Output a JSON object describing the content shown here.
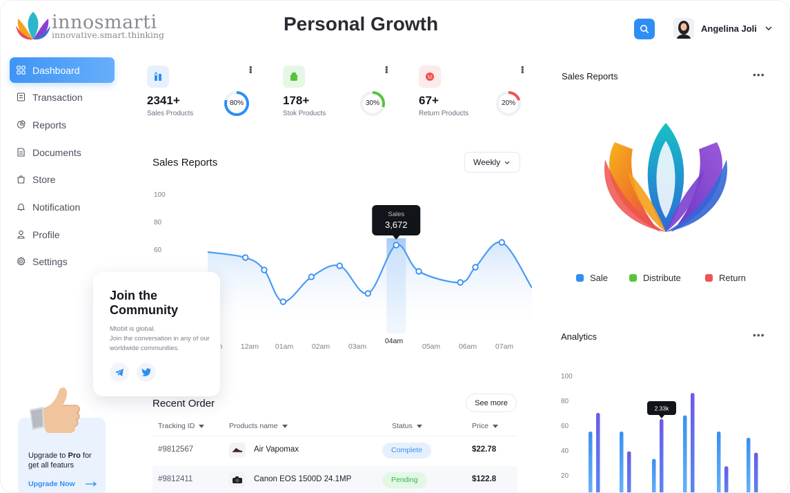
{
  "brand": {
    "name": "innosmarti",
    "tagline": "innovative.smart.thinking",
    "colors": {
      "accent": "#2f8ef3",
      "green": "#56c43e",
      "red": "#ef5350"
    }
  },
  "header": {
    "title": "Personal Growth",
    "search_icon": "search-icon",
    "user": {
      "name": "Angelina Joli"
    }
  },
  "sidebar": {
    "items": [
      {
        "label": "Dashboard",
        "icon": "grid-icon",
        "active": true
      },
      {
        "label": "Transaction",
        "icon": "receipt-icon"
      },
      {
        "label": "Reports",
        "icon": "pie-chart-icon"
      },
      {
        "label": "Documents",
        "icon": "document-icon"
      },
      {
        "label": "Store",
        "icon": "store-icon"
      },
      {
        "label": "Notification",
        "icon": "bell-icon"
      },
      {
        "label": "Profile",
        "icon": "user-icon"
      },
      {
        "label": "Settings",
        "icon": "gear-icon"
      }
    ]
  },
  "community": {
    "title": "Join the Community",
    "line1": "Mtobit is global.",
    "line2": "Join the conversation in any of our worldwide communities."
  },
  "upgrade": {
    "text_pre": "Upgrade to ",
    "text_bold": "Pro",
    "text_post": " for get all featurs",
    "link": "Upgrade Now"
  },
  "stats": [
    {
      "value": "2341+",
      "label": "Sales Products",
      "percent_label": "80%",
      "percent": 0.8,
      "color": "#2f8ef3",
      "bg": "#e7f1fd"
    },
    {
      "value": "178+",
      "label": "Stok Products",
      "percent_label": "30%",
      "percent": 0.3,
      "color": "#56c43e",
      "bg": "#e6f7e6"
    },
    {
      "value": "67+",
      "label": "Return Products",
      "percent_label": "20%",
      "percent": 0.2,
      "color": "#ef5350",
      "bg": "#fdeaea"
    }
  ],
  "sales": {
    "title": "Sales Reports",
    "filter": "Weekly",
    "tooltip": {
      "label": "Sales",
      "value": "3,672"
    }
  },
  "chart_data": [
    {
      "type": "line",
      "title": "Sales Reports",
      "yticks": [
        100,
        80,
        60
      ],
      "ylim": [
        0,
        100
      ],
      "categories": [
        "11pm",
        "12am",
        "01am",
        "02am",
        "03am",
        "04am",
        "05am",
        "06am",
        "07am"
      ],
      "x_tick_labels": [
        "m",
        "12am",
        "01am",
        "02am",
        "03am",
        "04am",
        "05am",
        "06am",
        "07am"
      ],
      "highlighted": "04am",
      "points": [
        {
          "x": 10.0,
          "y": 54
        },
        {
          "x": 10.5,
          "y": 45
        },
        {
          "x": 11.0,
          "y": 22
        },
        {
          "x": 11.75,
          "y": 40
        },
        {
          "x": 12.5,
          "y": 48
        },
        {
          "x": 13.25,
          "y": 28
        },
        {
          "x": 14.0,
          "y": 63
        },
        {
          "x": 14.6,
          "y": 44
        },
        {
          "x": 15.7,
          "y": 36
        },
        {
          "x": 16.1,
          "y": 47
        },
        {
          "x": 16.8,
          "y": 65
        }
      ],
      "grid": false
    },
    {
      "type": "bar",
      "title": "Analytics",
      "yticks": [
        100,
        80,
        60,
        40,
        20
      ],
      "ylim": [
        0,
        100
      ],
      "tooltip_label": "2.33k",
      "series": [
        {
          "color": "#3a8ff0",
          "values": [
            55,
            55,
            33,
            68,
            55,
            50
          ]
        },
        {
          "color": "#6a5ae8",
          "values": [
            70,
            39,
            65,
            86,
            27,
            38
          ]
        }
      ]
    }
  ],
  "orders": {
    "title": "Recent Order",
    "see_more": "See more",
    "headers": {
      "id": "Tracking ID",
      "name": "Products name",
      "status": "Status",
      "price": "Price"
    },
    "rows": [
      {
        "id": "#9812567",
        "name": "Air Vapomax",
        "status": "Complete",
        "price": "$22.78",
        "icon": "shoe-icon"
      },
      {
        "id": "#9812411",
        "name": "Canon EOS 1500D 24.1MP",
        "status": "Pending",
        "price": "$122.8",
        "icon": "camera-icon"
      }
    ]
  },
  "right_panel": {
    "sales_title": "Sales Reports",
    "legend": [
      {
        "label": "Sale",
        "color": "#2f8ef3"
      },
      {
        "label": "Distribute",
        "color": "#56c43e"
      },
      {
        "label": "Return",
        "color": "#ef5350"
      }
    ],
    "analytics_title": "Analytics"
  }
}
